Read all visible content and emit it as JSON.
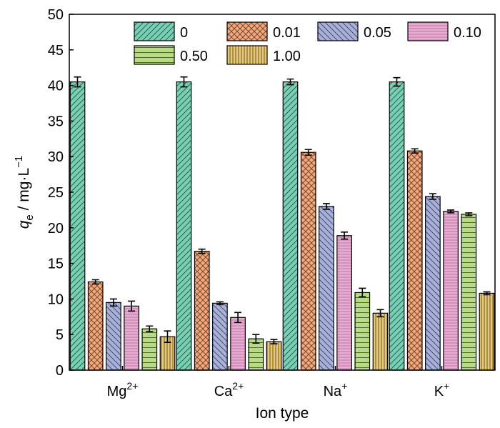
{
  "chart_data": {
    "type": "bar",
    "categories": [
      "Mg",
      "Ca",
      "Na",
      "K"
    ],
    "category_superscripts": [
      "2+",
      "2+",
      "+",
      "+"
    ],
    "series": [
      {
        "name": "0",
        "values": [
          40.5,
          40.5,
          40.5,
          40.5
        ],
        "errors": [
          0.7,
          0.7,
          0.4,
          0.6
        ],
        "color": "#79cfb4",
        "pattern": "diag-forward"
      },
      {
        "name": "0.01",
        "values": [
          12.4,
          16.7,
          30.6,
          30.8
        ],
        "errors": [
          0.3,
          0.3,
          0.4,
          0.3
        ],
        "color": "#f6a779",
        "pattern": "crosshatch"
      },
      {
        "name": "0.05",
        "values": [
          9.5,
          9.4,
          23.0,
          24.4
        ],
        "errors": [
          0.5,
          0.2,
          0.4,
          0.4
        ],
        "color": "#a8b1dd",
        "pattern": "diag-back"
      },
      {
        "name": "0.10",
        "values": [
          9.0,
          7.4,
          18.9,
          22.3
        ],
        "errors": [
          0.7,
          0.7,
          0.5,
          0.2
        ],
        "color": "#d98fbe",
        "pattern": "horiz-fine"
      },
      {
        "name": "0.50",
        "values": [
          5.8,
          4.4,
          10.9,
          21.9
        ],
        "errors": [
          0.4,
          0.6,
          0.6,
          0.2
        ],
        "color": "#b7db84",
        "pattern": "horiz"
      },
      {
        "name": "1.00",
        "values": [
          4.7,
          4.0,
          8.0,
          10.8
        ],
        "errors": [
          0.8,
          0.3,
          0.5,
          0.2
        ],
        "color": "#e9c874",
        "pattern": "vert"
      }
    ],
    "xlabel": "Ion type",
    "ylabel_main": "q",
    "ylabel_sub": "e",
    "ylabel_rest": " / mg·L",
    "ylabel_sup": "−1",
    "ylim": [
      0,
      50
    ],
    "yticks": [
      0,
      5,
      10,
      15,
      20,
      25,
      30,
      35,
      40,
      45,
      50
    ],
    "grid": false,
    "legend": "top-right"
  }
}
